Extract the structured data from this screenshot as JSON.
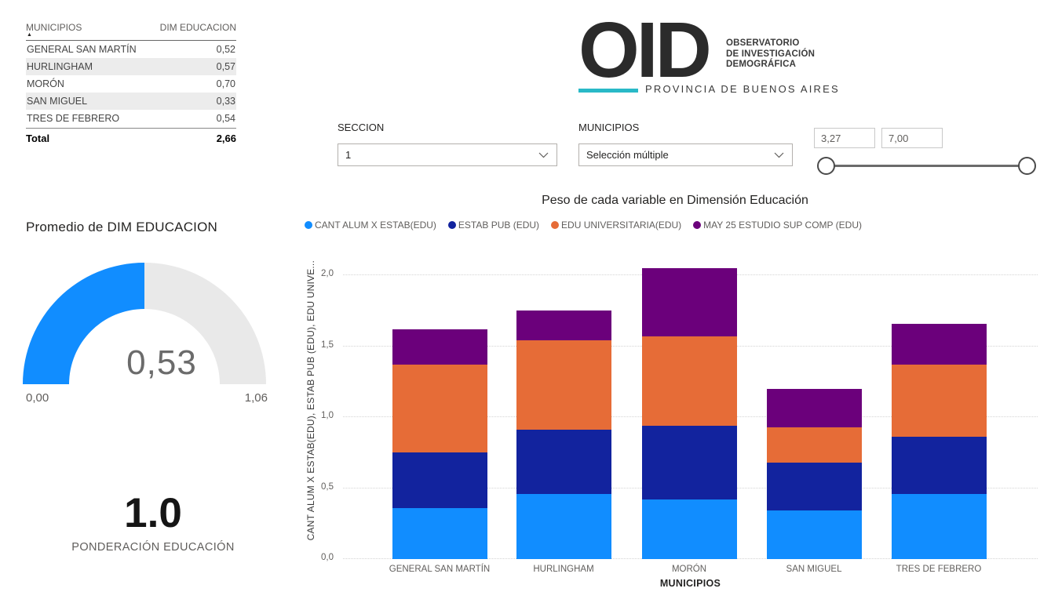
{
  "table": {
    "columns": [
      "MUNICIPIOS",
      "DIM EDUCACION"
    ],
    "sort_icon": "▲",
    "rows": [
      {
        "municipio": "GENERAL SAN MARTÍN",
        "valor": "0,52"
      },
      {
        "municipio": "HURLINGHAM",
        "valor": "0,57"
      },
      {
        "municipio": "MORÓN",
        "valor": "0,70"
      },
      {
        "municipio": "SAN MIGUEL",
        "valor": "0,33"
      },
      {
        "municipio": "TRES DE FEBRERO",
        "valor": "0,54"
      }
    ],
    "total_label": "Total",
    "total_value": "2,66"
  },
  "logo": {
    "acronym": "OID",
    "org_lines": [
      "OBSERVATORIO",
      "DE INVESTIGACIÓN",
      "DEMOGRÁFICA"
    ],
    "region": "PROVINCIA DE BUENOS AIRES",
    "accent_color": "#29b9c7"
  },
  "filters": {
    "seccion": {
      "label": "SECCION",
      "value": "1"
    },
    "municipios": {
      "label": "MUNICIPIOS",
      "value": "Selección múltiple"
    },
    "range": {
      "min_value": "3,27",
      "max_value": "7,00"
    }
  },
  "gauge": {
    "title": "Promedio de DIM EDUCACION",
    "value": "0,53",
    "min": "0,00",
    "max": "1,06",
    "fraction": 0.5,
    "fill_color": "#118DFF",
    "track_color": "#e9e9e9"
  },
  "kpi": {
    "value": "1.0",
    "label": "PONDERACIÓN EDUCACIÓN"
  },
  "chart_data": {
    "type": "bar",
    "stacked": true,
    "title": "Peso de cada variable en Dimensión Educación",
    "categories": [
      "GENERAL SAN MARTÍN",
      "HURLINGHAM",
      "MORÓN",
      "SAN MIGUEL",
      "TRES DE FEBRERO"
    ],
    "series": [
      {
        "name": "CANT ALUM X ESTAB(EDU)",
        "color": "#118DFF",
        "values": [
          0.36,
          0.46,
          0.42,
          0.34,
          0.46
        ]
      },
      {
        "name": "ESTAB PUB (EDU)",
        "color": "#12239E",
        "values": [
          0.39,
          0.45,
          0.52,
          0.34,
          0.4
        ]
      },
      {
        "name": "EDU UNIVERSITARIA(EDU)",
        "color": "#E66C37",
        "values": [
          0.62,
          0.63,
          0.63,
          0.25,
          0.51
        ]
      },
      {
        "name": "MAY 25 ESTUDIO SUP COMP (EDU)",
        "color": "#6B007B",
        "values": [
          0.25,
          0.21,
          0.48,
          0.27,
          0.29
        ]
      }
    ],
    "totals": [
      1.62,
      1.75,
      2.05,
      1.2,
      1.66
    ],
    "xlabel": "MUNICIPIOS",
    "ylabel": "CANT ALUM X ESTAB(EDU), ESTAB PUB (EDU), EDU UNIVE...",
    "ylim": [
      0,
      2.0
    ],
    "y_ticks": [
      {
        "label": "0,0",
        "value": 0.0
      },
      {
        "label": "0,5",
        "value": 0.5
      },
      {
        "label": "1,0",
        "value": 1.0
      },
      {
        "label": "1,5",
        "value": 1.5
      },
      {
        "label": "2,0",
        "value": 2.0
      }
    ],
    "grid": "dotted-horizontal",
    "legend_position": "top"
  }
}
